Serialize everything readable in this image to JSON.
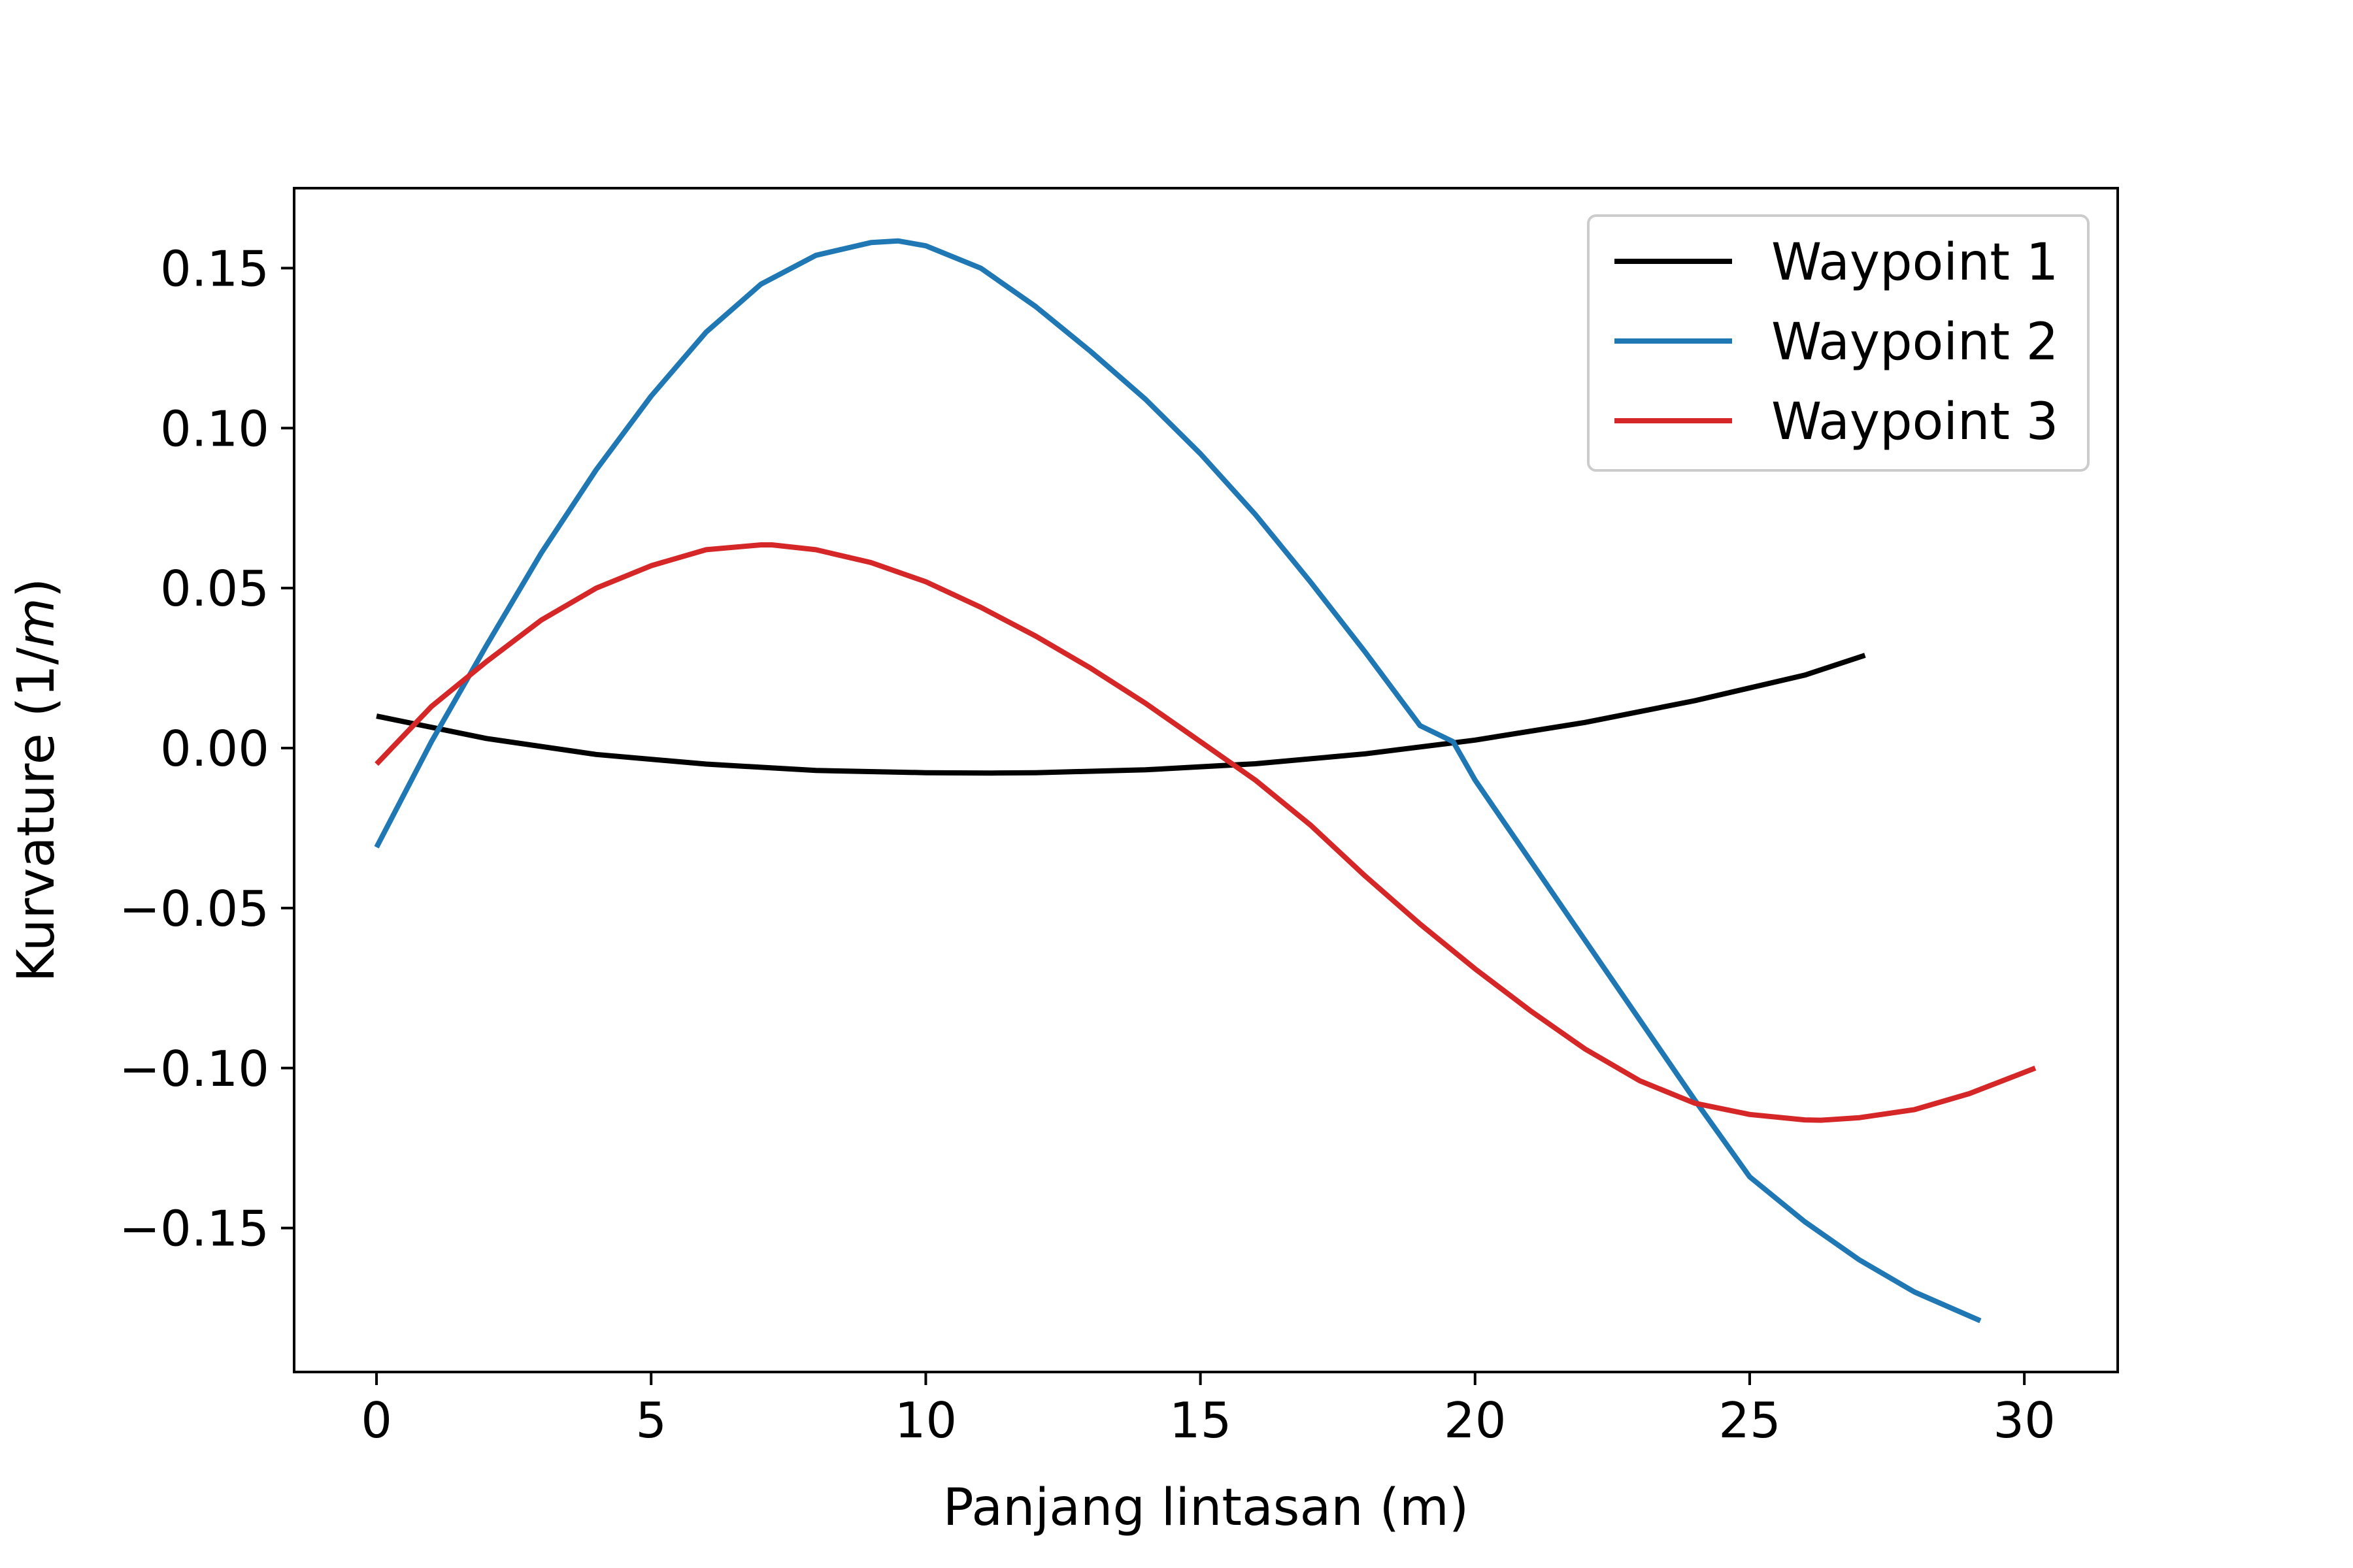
{
  "chart_data": {
    "type": "line",
    "title": "",
    "xlabel": "Panjang lintasan (m)",
    "ylabel": "Kurvature (1/",
    "ylabel_italic": "m",
    "ylabel_end": ")",
    "xlim": [
      -1.5,
      31.7
    ],
    "ylim": [
      -0.195,
      0.175
    ],
    "x_ticks": [
      0,
      5,
      10,
      15,
      20,
      25,
      30
    ],
    "x_tick_labels": [
      "0",
      "5",
      "10",
      "15",
      "20",
      "25",
      "30"
    ],
    "y_ticks": [
      0.15,
      0.1,
      0.05,
      0.0,
      -0.05,
      -0.1,
      -0.15
    ],
    "y_tick_labels": [
      "0.15",
      "0.10",
      "0.05",
      "0.00",
      "−0.05",
      "−0.10",
      "−0.15"
    ],
    "grid": false,
    "legend_position": "top-right",
    "series": [
      {
        "name": "Waypoint 1",
        "color": "#000000",
        "x": [
          0,
          2,
          4,
          6,
          8,
          10,
          11.2,
          12,
          14,
          16,
          18,
          20,
          22,
          24,
          26,
          27.1
        ],
        "y": [
          0.01,
          0.003,
          -0.002,
          -0.005,
          -0.007,
          -0.0077,
          -0.0078,
          -0.0077,
          -0.0068,
          -0.0049,
          -0.0018,
          0.0025,
          0.008,
          0.0148,
          0.0228,
          0.029
        ]
      },
      {
        "name": "Waypoint 2",
        "color": "#1f77b4",
        "x": [
          0,
          1,
          2,
          3,
          4,
          5,
          6,
          7,
          8,
          9,
          9.5,
          10,
          11,
          12,
          13,
          14,
          15,
          16,
          17,
          18,
          19,
          19.6,
          20,
          21,
          22,
          23,
          24,
          25,
          26,
          27,
          28,
          29.2
        ],
        "y": [
          -0.031,
          0.002,
          0.032,
          0.061,
          0.087,
          0.11,
          0.13,
          0.145,
          0.154,
          0.158,
          0.1585,
          0.157,
          0.15,
          0.138,
          0.124,
          0.109,
          0.092,
          0.073,
          0.052,
          0.03,
          0.007,
          0.002,
          -0.01,
          -0.035,
          -0.06,
          -0.085,
          -0.11,
          -0.134,
          -0.148,
          -0.16,
          -0.17,
          -0.179
        ]
      },
      {
        "name": "Waypoint 3",
        "color": "#d62728",
        "x": [
          0,
          1,
          2,
          3,
          4,
          5,
          6,
          7,
          7.2,
          8,
          9,
          10,
          11,
          12,
          13,
          14,
          15,
          15.5,
          16,
          17,
          18,
          19,
          20,
          21,
          22,
          23,
          24,
          25,
          26,
          26.3,
          27,
          28,
          29,
          30.2
        ],
        "y": [
          -0.005,
          0.013,
          0.027,
          0.04,
          0.05,
          0.057,
          0.062,
          0.0635,
          0.0635,
          0.062,
          0.058,
          0.052,
          0.044,
          0.035,
          0.025,
          0.014,
          0.002,
          -0.004,
          -0.01,
          -0.024,
          -0.04,
          -0.055,
          -0.069,
          -0.082,
          -0.094,
          -0.104,
          -0.111,
          -0.1145,
          -0.1162,
          -0.1163,
          -0.1155,
          -0.113,
          -0.108,
          -0.1
        ]
      }
    ]
  }
}
